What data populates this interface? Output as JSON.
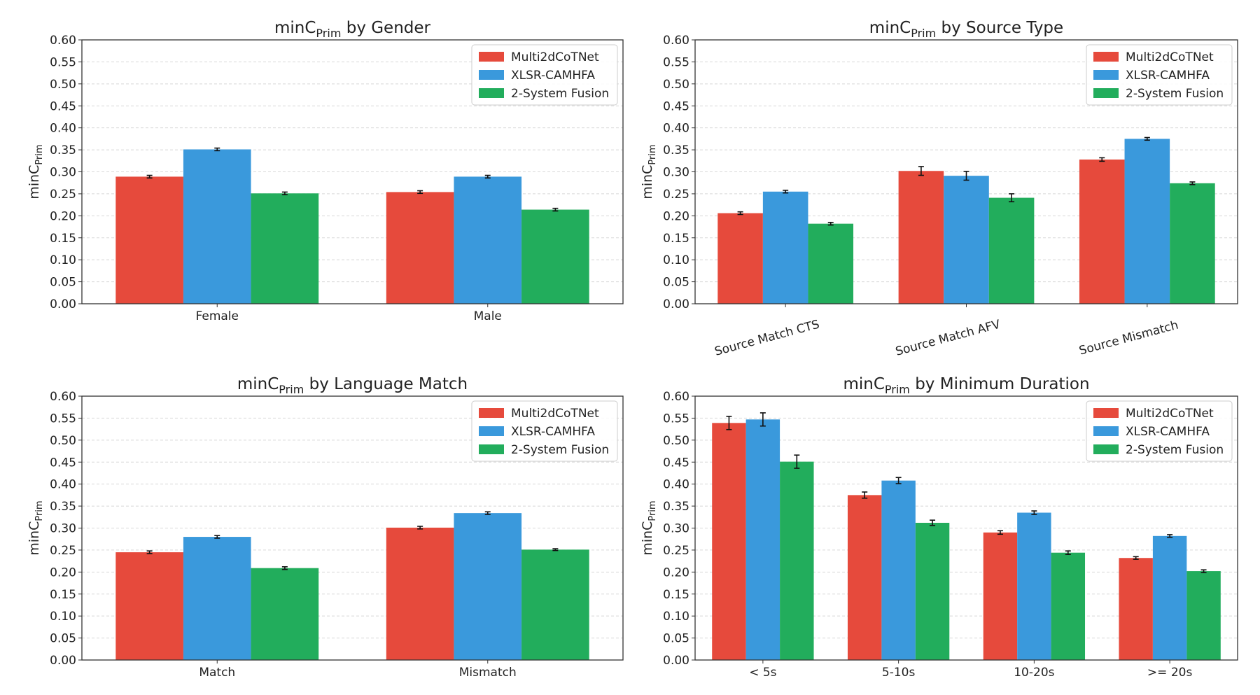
{
  "colors": {
    "Multi2dCoTNet": "#e64a3c",
    "XLSR-CAMHFA": "#3a99dc",
    "2-System Fusion": "#22ad5c"
  },
  "chart_data": [
    {
      "type": "bar",
      "title_prefix": "minC",
      "title_sub": "Prim",
      "title_suffix": " by Gender",
      "ylabel_main": "minC",
      "ylabel_sub": "Prim",
      "ylim": [
        0,
        0.6
      ],
      "yticks": [
        "0.00",
        "0.05",
        "0.10",
        "0.15",
        "0.20",
        "0.25",
        "0.30",
        "0.35",
        "0.40",
        "0.45",
        "0.50",
        "0.55",
        "0.60"
      ],
      "grid": true,
      "legend": "top-right",
      "xtick_rotation": 0,
      "categories": [
        "Female",
        "Male"
      ],
      "series": [
        {
          "name": "Multi2dCoTNet",
          "values": [
            0.289,
            0.254
          ],
          "errors": [
            0.003,
            0.003
          ]
        },
        {
          "name": "XLSR-CAMHFA",
          "values": [
            0.351,
            0.289
          ],
          "errors": [
            0.003,
            0.003
          ]
        },
        {
          "name": "2-System Fusion",
          "values": [
            0.251,
            0.214
          ],
          "errors": [
            0.003,
            0.003
          ]
        }
      ]
    },
    {
      "type": "bar",
      "title_prefix": "minC",
      "title_sub": "Prim",
      "title_suffix": " by Source Type",
      "ylabel_main": "minC",
      "ylabel_sub": "Prim",
      "ylim": [
        0,
        0.6
      ],
      "yticks": [
        "0.00",
        "0.05",
        "0.10",
        "0.15",
        "0.20",
        "0.25",
        "0.30",
        "0.35",
        "0.40",
        "0.45",
        "0.50",
        "0.55",
        "0.60"
      ],
      "grid": true,
      "legend": "top-right",
      "xtick_rotation": -15,
      "categories": [
        "Source Match CTS",
        "Source Match AFV",
        "Source Mismatch"
      ],
      "series": [
        {
          "name": "Multi2dCoTNet",
          "values": [
            0.206,
            0.302,
            0.328
          ],
          "errors": [
            0.003,
            0.01,
            0.004
          ]
        },
        {
          "name": "XLSR-CAMHFA",
          "values": [
            0.255,
            0.291,
            0.375
          ],
          "errors": [
            0.003,
            0.01,
            0.003
          ]
        },
        {
          "name": "2-System Fusion",
          "values": [
            0.182,
            0.241,
            0.274
          ],
          "errors": [
            0.003,
            0.009,
            0.003
          ]
        }
      ]
    },
    {
      "type": "bar",
      "title_prefix": "minC",
      "title_sub": "Prim",
      "title_suffix": " by Language Match",
      "ylabel_main": "minC",
      "ylabel_sub": "Prim",
      "ylim": [
        0,
        0.6
      ],
      "yticks": [
        "0.00",
        "0.05",
        "0.10",
        "0.15",
        "0.20",
        "0.25",
        "0.30",
        "0.35",
        "0.40",
        "0.45",
        "0.50",
        "0.55",
        "0.60"
      ],
      "grid": true,
      "legend": "top-right",
      "xtick_rotation": 0,
      "categories": [
        "Match",
        "Mismatch"
      ],
      "series": [
        {
          "name": "Multi2dCoTNet",
          "values": [
            0.245,
            0.301
          ],
          "errors": [
            0.003,
            0.003
          ]
        },
        {
          "name": "XLSR-CAMHFA",
          "values": [
            0.28,
            0.334
          ],
          "errors": [
            0.003,
            0.003
          ]
        },
        {
          "name": "2-System Fusion",
          "values": [
            0.209,
            0.251
          ],
          "errors": [
            0.003,
            0.002
          ]
        }
      ]
    },
    {
      "type": "bar",
      "title_prefix": "minC",
      "title_sub": "Prim",
      "title_suffix": " by Minimum Duration",
      "ylabel_main": "minC",
      "ylabel_sub": "Prim",
      "ylim": [
        0,
        0.6
      ],
      "yticks": [
        "0.00",
        "0.05",
        "0.10",
        "0.15",
        "0.20",
        "0.25",
        "0.30",
        "0.35",
        "0.40",
        "0.45",
        "0.50",
        "0.55",
        "0.60"
      ],
      "grid": true,
      "legend": "top-right",
      "xtick_rotation": 0,
      "categories": [
        "< 5s",
        "5-10s",
        "10-20s",
        ">= 20s"
      ],
      "series": [
        {
          "name": "Multi2dCoTNet",
          "values": [
            0.539,
            0.375,
            0.29,
            0.232
          ],
          "errors": [
            0.015,
            0.007,
            0.004,
            0.003
          ]
        },
        {
          "name": "XLSR-CAMHFA",
          "values": [
            0.547,
            0.408,
            0.335,
            0.282
          ],
          "errors": [
            0.015,
            0.007,
            0.004,
            0.003
          ]
        },
        {
          "name": "2-System Fusion",
          "values": [
            0.451,
            0.312,
            0.244,
            0.202
          ],
          "errors": [
            0.015,
            0.006,
            0.004,
            0.003
          ]
        }
      ]
    }
  ]
}
